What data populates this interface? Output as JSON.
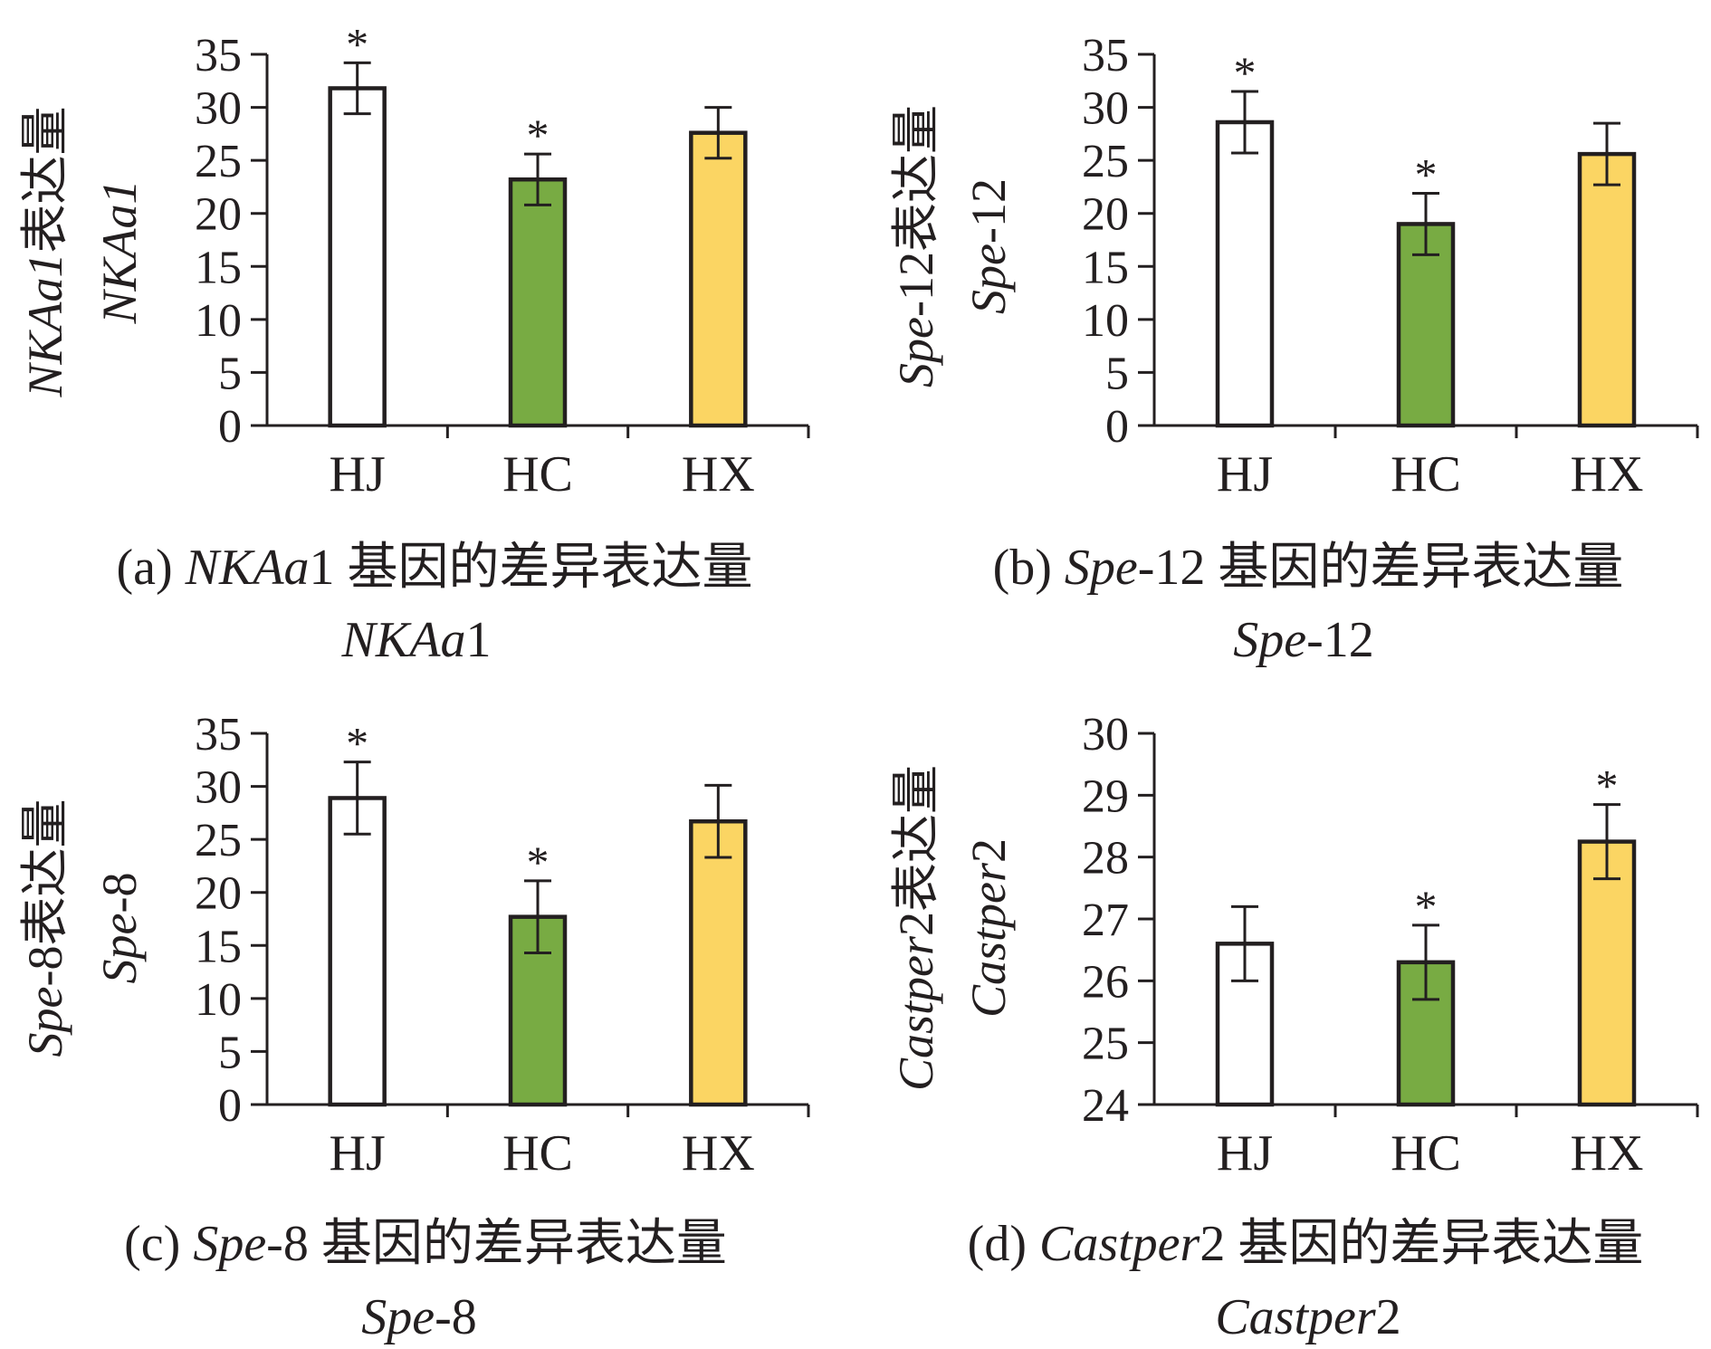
{
  "colors": {
    "HJ": "#ffffff",
    "HC": "#78ab43",
    "HX": "#fbd563",
    "ink": "#231f20"
  },
  "chart_data": [
    {
      "type": "bar",
      "panel": "a",
      "categories": [
        "HJ",
        "HC",
        "HX"
      ],
      "values": [
        31.8,
        23.2,
        27.6
      ],
      "errors": [
        2.4,
        2.4,
        2.4
      ],
      "significant": [
        true,
        true,
        false
      ],
      "ylim": [
        0,
        35
      ],
      "yticks": [
        "0",
        "5",
        "10",
        "15",
        "20",
        "25",
        "30",
        "35"
      ],
      "ylabel": {
        "gene": "NKAa1",
        "zh": "表达量",
        "en": "NKAa1"
      },
      "caption": {
        "prefix": "(a) ",
        "gene": "NKAa",
        "gene_suffix": "1",
        "zh": " 基因的差异表达量",
        "en_gene": "NKAa",
        "en_suffix": "1"
      }
    },
    {
      "type": "bar",
      "panel": "b",
      "categories": [
        "HJ",
        "HC",
        "HX"
      ],
      "values": [
        28.6,
        19.0,
        25.6
      ],
      "errors": [
        2.9,
        2.9,
        2.9
      ],
      "significant": [
        true,
        true,
        false
      ],
      "ylim": [
        0,
        35
      ],
      "yticks": [
        "0",
        "5",
        "10",
        "15",
        "20",
        "25",
        "30",
        "35"
      ],
      "ylabel": {
        "gene": "Spe",
        "suffix": "-12",
        "zh": "表达量",
        "en_gene": "Spe",
        "en_suffix": "-12"
      },
      "caption": {
        "prefix": "(b) ",
        "gene": "Spe",
        "gene_suffix": "-12",
        "zh": " 基因的差异表达量",
        "en_gene": "Spe",
        "en_suffix": "-12"
      }
    },
    {
      "type": "bar",
      "panel": "c",
      "categories": [
        "HJ",
        "HC",
        "HX"
      ],
      "values": [
        28.9,
        17.7,
        26.7
      ],
      "errors": [
        3.4,
        3.4,
        3.4
      ],
      "significant": [
        true,
        true,
        false
      ],
      "ylim": [
        0,
        35
      ],
      "yticks": [
        "0",
        "5",
        "10",
        "15",
        "20",
        "25",
        "30",
        "35"
      ],
      "ylabel": {
        "gene": "Spe",
        "suffix": "-8",
        "zh": "表达量",
        "en_gene": "Spe",
        "en_suffix": "-8"
      },
      "caption": {
        "prefix": "(c) ",
        "gene": "Spe",
        "gene_suffix": "-8",
        "zh": " 基因的差异表达量",
        "en_gene": "Spe",
        "en_suffix": "-8"
      }
    },
    {
      "type": "bar",
      "panel": "d",
      "categories": [
        "HJ",
        "HC",
        "HX"
      ],
      "values": [
        26.6,
        26.3,
        28.25
      ],
      "errors": [
        0.6,
        0.6,
        0.6
      ],
      "significant": [
        false,
        true,
        true
      ],
      "ylim": [
        24,
        30
      ],
      "yticks": [
        "24",
        "25",
        "26",
        "27",
        "28",
        "29",
        "30"
      ],
      "ylabel": {
        "gene": "Castper",
        "suffix": "2",
        "zh": "表达量",
        "en_gene": "Castper",
        "en_suffix": "2"
      },
      "caption": {
        "prefix": "(d) ",
        "gene": "Castper",
        "gene_suffix": "2",
        "zh": " 基因的差异表达量",
        "en_gene": "Castper",
        "en_suffix": "2"
      }
    }
  ]
}
